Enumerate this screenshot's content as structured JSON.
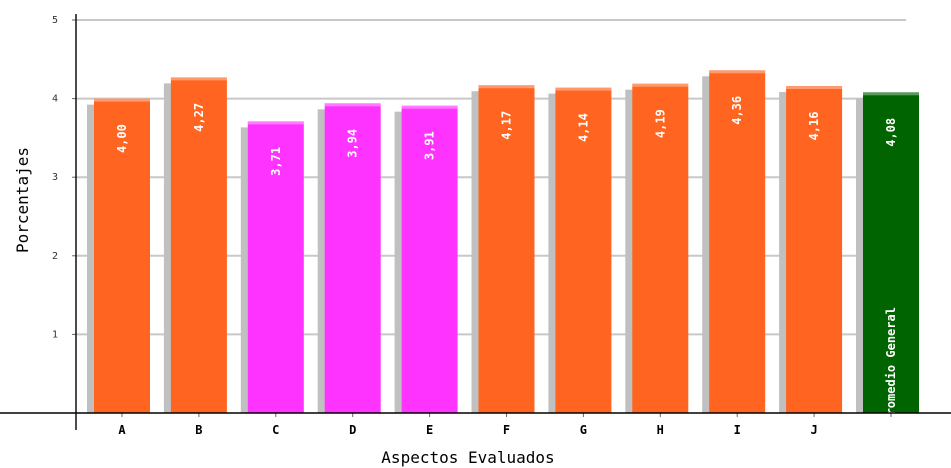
{
  "chart_data": {
    "type": "bar",
    "categories": [
      "A",
      "B",
      "C",
      "D",
      "E",
      "F",
      "G",
      "H",
      "I",
      "J",
      ""
    ],
    "values": [
      4.0,
      4.27,
      3.71,
      3.94,
      3.91,
      4.17,
      4.14,
      4.19,
      4.36,
      4.16,
      4.08
    ],
    "value_labels": [
      "4,00",
      "4,27",
      "3,71",
      "3,94",
      "3,91",
      "4,17",
      "4,14",
      "4,19",
      "4,36",
      "4,16",
      "4,08"
    ],
    "extra_bar_label": "Promedio General",
    "bar_colors": [
      "#ff6420",
      "#ff6420",
      "#ff33ff",
      "#ff33ff",
      "#ff33ff",
      "#ff6420",
      "#ff6420",
      "#ff6420",
      "#ff6420",
      "#ff6420",
      "#006400"
    ],
    "shadow_color": "#c0c0c0",
    "xlabel": "Aspectos Evaluados",
    "ylabel": "Porcentajes",
    "ylim": [
      0,
      5
    ],
    "yticks": [
      "1",
      "2",
      "3",
      "4",
      "5"
    ],
    "grid": true
  }
}
